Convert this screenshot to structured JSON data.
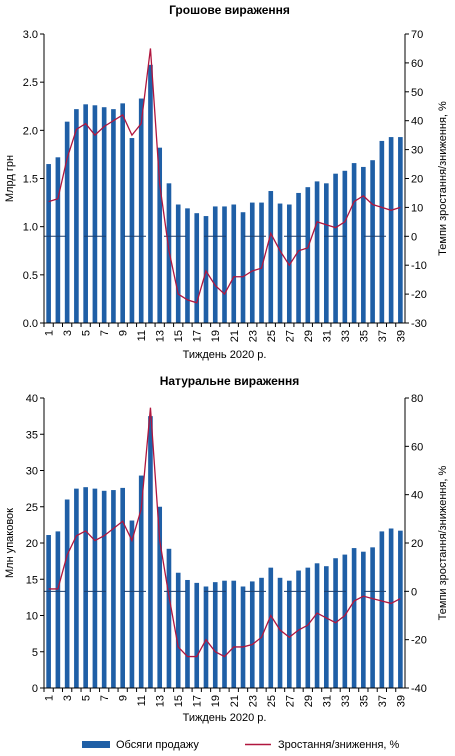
{
  "chart_data": [
    {
      "type": "bar",
      "title": "Грошове вираження",
      "xlabel": "Тиждень 2020 р.",
      "ylabel": "Млрд грн",
      "y2label": "Темпи зростання/зниження, %",
      "x_tick_labels": [
        "1",
        "3",
        "5",
        "7",
        "9",
        "11",
        "13",
        "15",
        "17",
        "19",
        "21",
        "23",
        "25",
        "27",
        "29",
        "31",
        "33",
        "35",
        "37",
        "39"
      ],
      "ylim": [
        0,
        3.0
      ],
      "y_ticks": [
        "0.0",
        "0.5",
        "1.0",
        "1.5",
        "2.0",
        "2.5",
        "3.0"
      ],
      "y2lim": [
        -30,
        70
      ],
      "y2_ticks": [
        "-30",
        "-20",
        "-10",
        "0",
        "10",
        "20",
        "30",
        "40",
        "50",
        "60",
        "70"
      ],
      "weeks": [
        1,
        2,
        3,
        4,
        5,
        6,
        7,
        8,
        9,
        10,
        11,
        12,
        13,
        14,
        15,
        16,
        17,
        18,
        19,
        20,
        21,
        22,
        23,
        24,
        25,
        26,
        27,
        28,
        29,
        30,
        31,
        32,
        33,
        34,
        35,
        36,
        37,
        38,
        39
      ],
      "series": [
        {
          "name": "Обсяги продажу",
          "type": "bar",
          "axis": "left",
          "values": [
            1.65,
            1.72,
            2.09,
            2.22,
            2.27,
            2.26,
            2.24,
            2.22,
            2.28,
            1.92,
            2.33,
            2.68,
            1.82,
            1.45,
            1.23,
            1.19,
            1.14,
            1.11,
            1.21,
            1.21,
            1.23,
            1.15,
            1.25,
            1.25,
            1.37,
            1.24,
            1.23,
            1.35,
            1.41,
            1.47,
            1.45,
            1.55,
            1.58,
            1.66,
            1.62,
            1.69,
            1.89,
            1.93,
            1.93
          ]
        },
        {
          "name": "Зростання/зниження, %",
          "type": "line",
          "axis": "right",
          "values": [
            12,
            13,
            27,
            37,
            39,
            35,
            38,
            40,
            42,
            35,
            39,
            65,
            18,
            -5,
            -20,
            -22,
            -23,
            -12,
            -17,
            -20,
            -14,
            -14,
            -12,
            -11,
            1,
            -5,
            -10,
            -5,
            -4,
            5,
            4,
            3,
            5,
            12,
            14,
            11,
            10,
            9,
            10
          ]
        }
      ]
    },
    {
      "type": "bar",
      "title": "Натуральне вираження",
      "xlabel": "Тиждень 2020 р.",
      "ylabel": "Млн упаковок",
      "y2label": "Темпи зростання/зниження, %",
      "x_tick_labels": [
        "1",
        "3",
        "5",
        "7",
        "9",
        "11",
        "13",
        "15",
        "17",
        "19",
        "21",
        "23",
        "25",
        "27",
        "29",
        "31",
        "33",
        "35",
        "37",
        "39"
      ],
      "ylim": [
        0,
        40
      ],
      "y_ticks": [
        "0",
        "5",
        "10",
        "15",
        "20",
        "25",
        "30",
        "35",
        "40"
      ],
      "y2lim": [
        -40,
        80
      ],
      "y2_ticks": [
        "-40",
        "-20",
        "0",
        "20",
        "40",
        "60",
        "80"
      ],
      "weeks": [
        1,
        2,
        3,
        4,
        5,
        6,
        7,
        8,
        9,
        10,
        11,
        12,
        13,
        14,
        15,
        16,
        17,
        18,
        19,
        20,
        21,
        22,
        23,
        24,
        25,
        26,
        27,
        28,
        29,
        30,
        31,
        32,
        33,
        34,
        35,
        36,
        37,
        38,
        39
      ],
      "series": [
        {
          "name": "Обсяги продажу",
          "type": "bar",
          "axis": "left",
          "values": [
            21.1,
            21.6,
            26.0,
            27.5,
            27.7,
            27.5,
            27.2,
            27.3,
            27.6,
            23.1,
            29.3,
            37.5,
            25.0,
            19.2,
            15.9,
            14.9,
            14.5,
            14.0,
            14.6,
            14.8,
            14.8,
            14.0,
            14.7,
            15.2,
            16.6,
            15.2,
            14.8,
            16.2,
            16.6,
            17.2,
            16.8,
            17.9,
            18.4,
            19.3,
            18.8,
            19.4,
            21.6,
            22.0,
            21.7
          ]
        },
        {
          "name": "Зростання/зниження, %",
          "type": "line",
          "axis": "right",
          "values": [
            1,
            1,
            15,
            23,
            25,
            21,
            23,
            26,
            29,
            21,
            34,
            76,
            21,
            -2,
            -23,
            -27,
            -27,
            -20,
            -25,
            -27,
            -23,
            -23,
            -22,
            -19,
            -10,
            -16,
            -19,
            -16,
            -14,
            -9,
            -11,
            -13,
            -10,
            -4,
            -2,
            -3,
            -4,
            -5,
            -3
          ]
        }
      ]
    }
  ],
  "legend": {
    "bar_label": "Обсяги продажу",
    "line_label": "Зростання/зниження, %",
    "bar_color": "#1f5fa6",
    "line_color": "#b0163e"
  },
  "colors": {
    "bar": "#1f5fa6",
    "line": "#b0163e",
    "axis": "#000000"
  }
}
